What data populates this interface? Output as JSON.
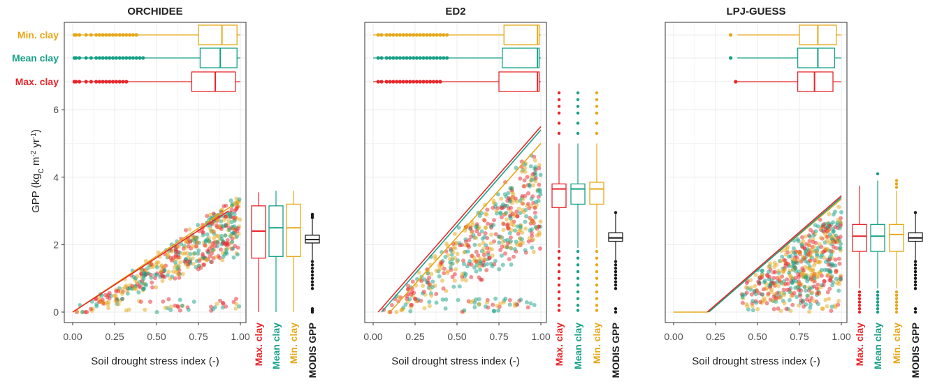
{
  "chart_data": {
    "type": "scatter",
    "y_axis_label": "GPP (kg",
    "y_axis_label_sub": "C",
    "y_axis_label_mid": " m",
    "y_axis_label_sup1": "-2",
    "y_axis_label_tail": " yr",
    "y_axis_label_sup2": "-1",
    "y_axis_label_end": ")",
    "x_axis_label": "Soil drought stress index (-)",
    "xlim": [
      0,
      1
    ],
    "ylim": [
      0,
      6.5
    ],
    "x_ticks": [
      "0.00",
      "0.25",
      "0.50",
      "0.75",
      "1.00"
    ],
    "y_ticks": [
      "0",
      "2",
      "4",
      "6"
    ],
    "colors": {
      "max_clay": "#e8262b",
      "mean_clay": "#16a086",
      "min_clay": "#e6a819",
      "modis": "#1a1a1a",
      "grid": "#ebebeb",
      "panel_border": "#333333"
    },
    "top_labels": [
      {
        "text": "Min. clay",
        "series": "min_clay"
      },
      {
        "text": "Mean clay",
        "series": "mean_clay"
      },
      {
        "text": "Max. clay",
        "series": "max_clay"
      }
    ],
    "right_labels": [
      {
        "text": "Max. clay",
        "series": "max_clay"
      },
      {
        "text": "Mean clay",
        "series": "mean_clay"
      },
      {
        "text": "Min. clay",
        "series": "min_clay"
      },
      {
        "text": "MODIS GPP",
        "series": "modis"
      }
    ],
    "panels": [
      {
        "title": "ORCHIDEE",
        "show_y_ticks": true,
        "fit_lines": [
          {
            "series": "min_clay",
            "x": [
              0.0,
              0.95
            ],
            "y": [
              0.0,
              3.15
            ]
          },
          {
            "series": "max_clay",
            "x": [
              0.0,
              0.93
            ],
            "y": [
              0.0,
              3.0
            ]
          }
        ],
        "cloud": {
          "x0": 0.02,
          "x1": 1.0,
          "slope": 3.7,
          "spread": 0.35,
          "floor_frac": 0.55
        },
        "drought_boxes": {
          "min_clay": {
            "min": 0.0,
            "q1": 0.75,
            "median": 0.89,
            "q3": 0.98,
            "max": 1.0,
            "outliers": [
              0.01,
              0.02,
              0.04,
              0.08,
              0.11,
              0.14,
              0.16,
              0.18,
              0.2,
              0.22,
              0.24,
              0.26,
              0.28,
              0.3,
              0.32,
              0.34,
              0.36,
              0.38
            ]
          },
          "mean_clay": {
            "min": 0.0,
            "q1": 0.76,
            "median": 0.88,
            "q3": 0.98,
            "max": 1.0,
            "outliers": [
              0.01,
              0.02,
              0.04,
              0.08,
              0.11,
              0.14,
              0.16,
              0.18,
              0.2,
              0.22,
              0.24,
              0.26,
              0.28,
              0.3,
              0.32,
              0.34,
              0.36,
              0.38,
              0.4,
              0.42
            ]
          },
          "max_clay": {
            "min": 0.0,
            "q1": 0.71,
            "median": 0.85,
            "q3": 0.97,
            "max": 1.0,
            "outliers": [
              0.01,
              0.02,
              0.04,
              0.08,
              0.11,
              0.14,
              0.16,
              0.18,
              0.2,
              0.22,
              0.24,
              0.26,
              0.28,
              0.3,
              0.32
            ]
          }
        },
        "gpp_boxes": {
          "max_clay": {
            "min": 0.0,
            "q1": 1.6,
            "median": 2.4,
            "q3": 3.15,
            "max": 3.55,
            "outliers": []
          },
          "mean_clay": {
            "min": 0.0,
            "q1": 1.65,
            "median": 2.5,
            "q3": 3.15,
            "max": 3.6,
            "outliers": []
          },
          "min_clay": {
            "min": 0.0,
            "q1": 1.65,
            "median": 2.5,
            "q3": 3.2,
            "max": 3.6,
            "outliers": []
          },
          "modis": {
            "min": 1.55,
            "q1": 2.05,
            "median": 2.15,
            "q3": 2.28,
            "max": 2.75,
            "outliers": [
              2.8,
              2.85,
              2.9,
              1.5,
              1.4,
              1.3,
              1.2,
              1.1,
              1.0,
              0.9,
              0.8,
              0.7,
              0.1,
              0.05,
              0.0
            ]
          }
        }
      },
      {
        "title": "ED2",
        "show_y_ticks": false,
        "fit_lines": [
          {
            "series": "max_clay",
            "x": [
              0.03,
              1.0
            ],
            "y": [
              0.0,
              5.5
            ]
          },
          {
            "series": "mean_clay",
            "x": [
              0.05,
              1.0
            ],
            "y": [
              0.0,
              5.4
            ]
          },
          {
            "series": "min_clay",
            "x": [
              0.1,
              1.0
            ],
            "y": [
              0.0,
              5.0
            ]
          }
        ],
        "cloud": {
          "x0": 0.05,
          "x1": 1.0,
          "slope": 5.3,
          "spread": 0.6,
          "floor_frac": 0.45
        },
        "drought_boxes": {
          "min_clay": {
            "min": 0.0,
            "q1": 0.78,
            "median": 0.98,
            "q3": 0.99,
            "max": 1.0,
            "outliers": [
              0.03,
              0.05,
              0.08,
              0.1,
              0.12,
              0.14,
              0.16,
              0.18,
              0.2,
              0.22,
              0.24,
              0.26,
              0.28,
              0.3,
              0.32,
              0.34,
              0.36,
              0.38,
              0.4,
              0.42,
              0.44
            ]
          },
          "mean_clay": {
            "min": 0.0,
            "q1": 0.77,
            "median": 0.98,
            "q3": 0.99,
            "max": 1.0,
            "outliers": [
              0.03,
              0.05,
              0.08,
              0.1,
              0.12,
              0.14,
              0.16,
              0.18,
              0.2,
              0.22,
              0.24,
              0.26,
              0.28,
              0.3,
              0.32,
              0.34,
              0.36,
              0.38,
              0.4,
              0.42,
              0.44
            ]
          },
          "max_clay": {
            "min": 0.0,
            "q1": 0.75,
            "median": 0.98,
            "q3": 0.99,
            "max": 1.0,
            "outliers": [
              0.03,
              0.05,
              0.08,
              0.1,
              0.12,
              0.14,
              0.16,
              0.18,
              0.2,
              0.22,
              0.24,
              0.26,
              0.28,
              0.3,
              0.32,
              0.34,
              0.36,
              0.38,
              0.4
            ]
          }
        },
        "gpp_boxes": {
          "max_clay": {
            "min": 1.9,
            "q1": 3.1,
            "median": 3.65,
            "q3": 3.8,
            "max": 5.0,
            "outliers": [
              5.3,
              5.6,
              5.9,
              6.1,
              6.3,
              6.5,
              1.8,
              1.6,
              1.4,
              1.2,
              1.0,
              0.8,
              0.6,
              0.4,
              0.2,
              0.05
            ]
          },
          "mean_clay": {
            "min": 1.9,
            "q1": 3.2,
            "median": 3.65,
            "q3": 3.8,
            "max": 5.0,
            "outliers": [
              5.3,
              5.6,
              5.9,
              6.1,
              6.3,
              6.5,
              1.8,
              1.6,
              1.4,
              1.2,
              1.0,
              0.8,
              0.6,
              0.4,
              0.2,
              0.05
            ]
          },
          "min_clay": {
            "min": 1.9,
            "q1": 3.2,
            "median": 3.65,
            "q3": 3.85,
            "max": 5.0,
            "outliers": [
              5.3,
              5.6,
              5.9,
              6.1,
              6.3,
              6.5,
              1.8,
              1.6,
              1.4,
              1.2,
              1.0,
              0.8,
              0.6,
              0.4,
              0.2,
              0.05
            ]
          },
          "modis": {
            "min": 1.55,
            "q1": 2.1,
            "median": 2.2,
            "q3": 2.35,
            "max": 2.9,
            "outliers": [
              2.95,
              1.5,
              1.4,
              1.3,
              1.2,
              1.1,
              1.0,
              0.9,
              0.8,
              0.7,
              0.1,
              0.0
            ]
          }
        }
      },
      {
        "title": "LPJ-GUESS",
        "show_y_ticks": false,
        "fit_lines": [
          {
            "series": "min_clay",
            "x": [
              0.0,
              0.2
            ],
            "y": [
              0.0,
              0.0
            ]
          },
          {
            "series": "min_clay",
            "x": [
              0.2,
              1.0
            ],
            "y": [
              0.0,
              3.35
            ]
          },
          {
            "series": "mean_clay",
            "x": [
              0.21,
              1.0
            ],
            "y": [
              0.0,
              3.4
            ]
          },
          {
            "series": "max_clay",
            "x": [
              0.2,
              1.0
            ],
            "y": [
              0.0,
              3.45
            ]
          }
        ],
        "cloud": {
          "x0": 0.37,
          "x1": 1.0,
          "slope": 4.1,
          "spread": 0.3,
          "floor_frac": 0.25
        },
        "drought_boxes": {
          "min_clay": {
            "min": 0.38,
            "q1": 0.75,
            "median": 0.86,
            "q3": 0.97,
            "max": 1.0,
            "outliers": [
              0.34
            ]
          },
          "mean_clay": {
            "min": 0.38,
            "q1": 0.74,
            "median": 0.86,
            "q3": 0.96,
            "max": 1.0,
            "outliers": [
              0.34
            ]
          },
          "max_clay": {
            "min": 0.38,
            "q1": 0.74,
            "median": 0.84,
            "q3": 0.95,
            "max": 1.0,
            "outliers": [
              0.37
            ]
          }
        },
        "gpp_boxes": {
          "max_clay": {
            "min": 0.7,
            "q1": 1.8,
            "median": 2.25,
            "q3": 2.6,
            "max": 3.75,
            "outliers": [
              0.6,
              0.5,
              0.4,
              0.3,
              0.2,
              0.1,
              0.0
            ]
          },
          "mean_clay": {
            "min": 0.7,
            "q1": 1.8,
            "median": 2.25,
            "q3": 2.6,
            "max": 3.9,
            "outliers": [
              4.1,
              0.6,
              0.5,
              0.4,
              0.3,
              0.2,
              0.1,
              0.0
            ]
          },
          "min_clay": {
            "min": 0.7,
            "q1": 1.8,
            "median": 2.3,
            "q3": 2.6,
            "max": 3.6,
            "outliers": [
              3.7,
              3.8,
              3.9,
              0.6,
              0.5,
              0.4,
              0.3,
              0.2,
              0.1,
              0.0
            ]
          },
          "modis": {
            "min": 1.55,
            "q1": 2.1,
            "median": 2.2,
            "q3": 2.35,
            "max": 2.9,
            "outliers": [
              2.95,
              1.5,
              1.4,
              1.3,
              1.2,
              1.1,
              1.0,
              0.9,
              0.8,
              0.7,
              0.1,
              0.0
            ]
          }
        }
      }
    ]
  }
}
